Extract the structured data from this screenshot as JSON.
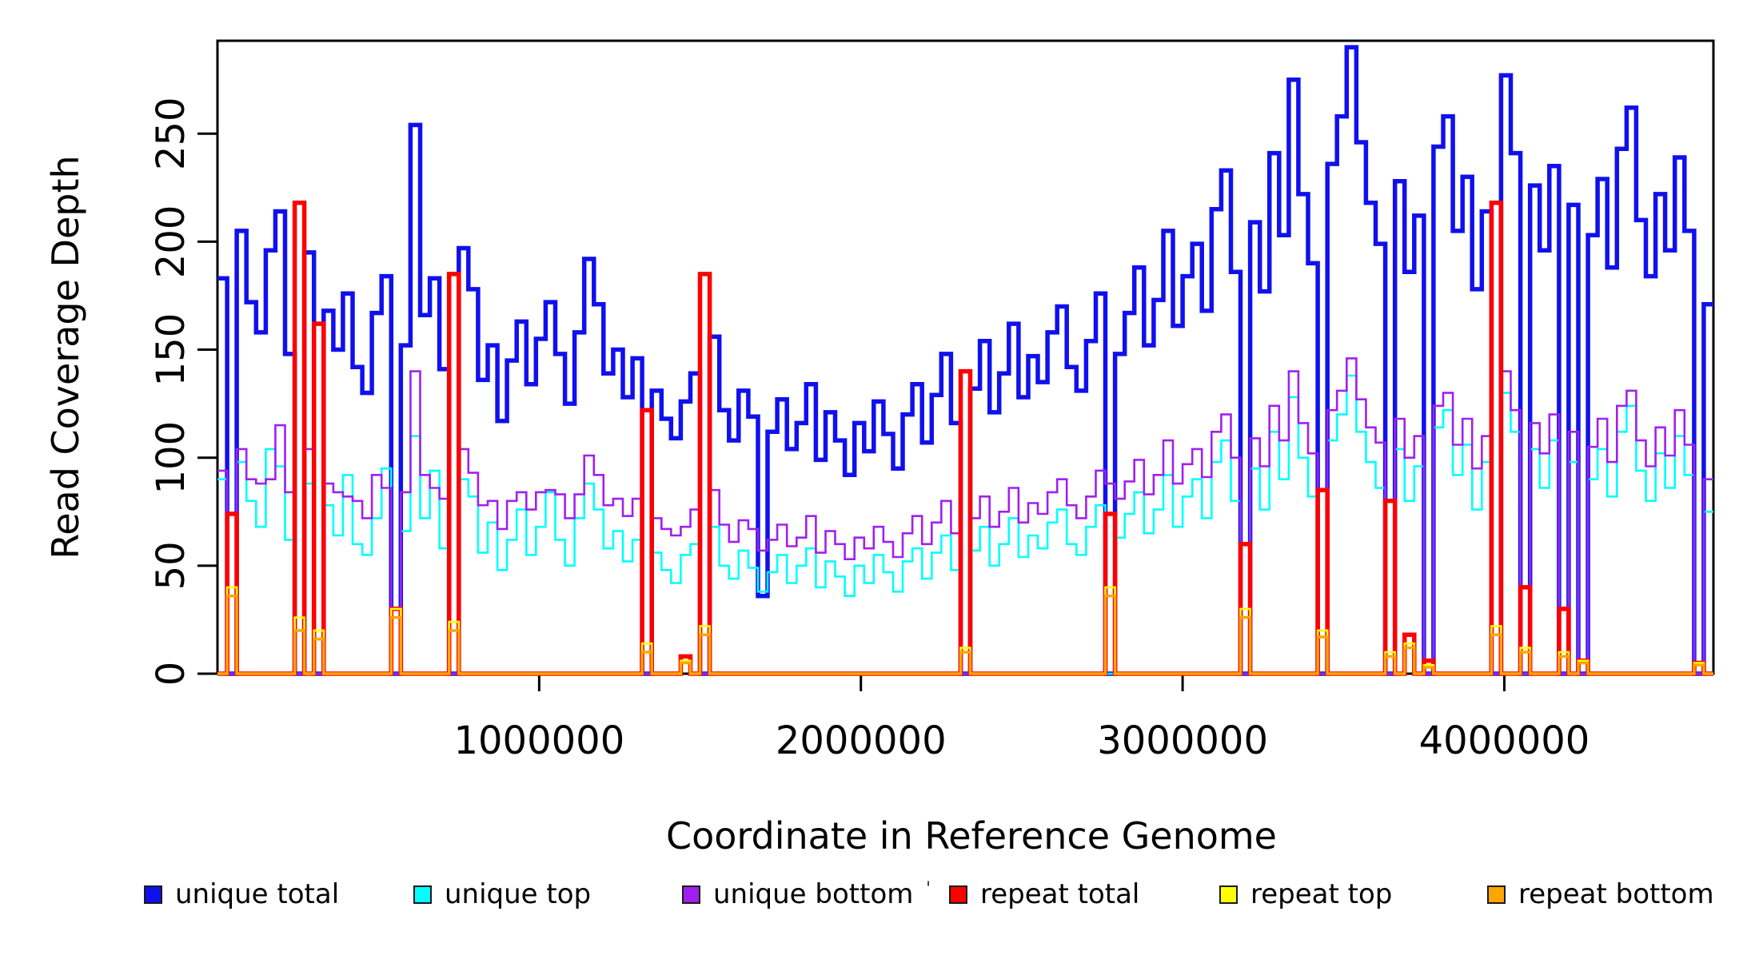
{
  "figure": {
    "background_color": "#ffffff",
    "plot_border_color": "#000000"
  },
  "chart_data": {
    "type": "line",
    "subtype": "step-coverage-histogram",
    "title": "",
    "xlabel": "Coordinate in Reference Genome",
    "ylabel": "Read Coverage Depth",
    "xlim": [
      0,
      4650000
    ],
    "ylim": [
      0,
      293
    ],
    "x_ticks": [
      1000000,
      2000000,
      3000000,
      4000000
    ],
    "y_ticks": [
      0,
      50,
      100,
      150,
      200,
      250
    ],
    "grid": false,
    "legend_position": "bottom",
    "bin_size_bp": 30000,
    "n_bins": 155,
    "stray_mark": "'",
    "series": [
      {
        "name": "unique total",
        "color": "#1010EE",
        "line_width": 5.5,
        "values": [
          183,
          0,
          205,
          172,
          158,
          196,
          214,
          148,
          0,
          195,
          0,
          168,
          150,
          176,
          142,
          130,
          167,
          184,
          0,
          152,
          254,
          166,
          183,
          141,
          0,
          197,
          178,
          136,
          152,
          117,
          145,
          163,
          134,
          155,
          172,
          148,
          125,
          158,
          192,
          171,
          139,
          150,
          128,
          146,
          0,
          131,
          118,
          109,
          126,
          139,
          0,
          156,
          122,
          108,
          131,
          119,
          36,
          112,
          127,
          104,
          116,
          134,
          99,
          121,
          108,
          92,
          116,
          103,
          126,
          111,
          95,
          120,
          134,
          107,
          129,
          148,
          116,
          0,
          132,
          154,
          121,
          139,
          162,
          128,
          147,
          135,
          158,
          170,
          142,
          131,
          154,
          176,
          0,
          148,
          167,
          188,
          152,
          173,
          205,
          161,
          184,
          199,
          168,
          215,
          233,
          186,
          0,
          209,
          177,
          241,
          203,
          275,
          222,
          190,
          0,
          236,
          258,
          290,
          246,
          218,
          199,
          0,
          228,
          186,
          212,
          0,
          244,
          258,
          205,
          230,
          178,
          214,
          0,
          277,
          241,
          0,
          226,
          196,
          235,
          0,
          217,
          0,
          203,
          229,
          188,
          243,
          262,
          210,
          184,
          222,
          196,
          239,
          205,
          0,
          171
        ]
      },
      {
        "name": "unique top",
        "color": "#00FFFF",
        "line_width": 2.6,
        "values": [
          90,
          0,
          98,
          80,
          68,
          104,
          96,
          62,
          0,
          88,
          0,
          78,
          64,
          92,
          60,
          55,
          72,
          95,
          0,
          66,
          110,
          72,
          94,
          58,
          0,
          90,
          82,
          56,
          70,
          48,
          62,
          76,
          55,
          68,
          84,
          62,
          50,
          72,
          88,
          76,
          58,
          66,
          52,
          62,
          0,
          56,
          48,
          42,
          55,
          60,
          0,
          68,
          50,
          44,
          57,
          49,
          38,
          47,
          55,
          42,
          50,
          58,
          40,
          52,
          45,
          36,
          50,
          42,
          55,
          47,
          38,
          52,
          58,
          44,
          56,
          64,
          48,
          0,
          57,
          68,
          50,
          60,
          72,
          54,
          64,
          58,
          70,
          76,
          60,
          55,
          68,
          78,
          0,
          63,
          74,
          84,
          65,
          76,
          92,
          68,
          82,
          90,
          72,
          98,
          108,
          80,
          0,
          95,
          76,
          112,
          90,
          128,
          100,
          82,
          0,
          108,
          120,
          138,
          112,
          98,
          86,
          0,
          104,
          80,
          96,
          0,
          114,
          122,
          92,
          106,
          76,
          98,
          0,
          130,
          112,
          0,
          104,
          86,
          108,
          0,
          98,
          0,
          90,
          104,
          82,
          112,
          124,
          94,
          80,
          102,
          86,
          110,
          92,
          0,
          75
        ]
      },
      {
        "name": "unique bottom",
        "color": "#A020F0",
        "line_width": 2.6,
        "values": [
          94,
          0,
          104,
          90,
          88,
          90,
          115,
          84,
          0,
          104,
          0,
          88,
          84,
          82,
          80,
          72,
          92,
          86,
          0,
          84,
          140,
          92,
          86,
          81,
          0,
          104,
          93,
          78,
          80,
          67,
          80,
          84,
          76,
          84,
          85,
          83,
          72,
          83,
          101,
          92,
          78,
          81,
          73,
          81,
          0,
          72,
          67,
          64,
          68,
          76,
          0,
          85,
          69,
          61,
          71,
          67,
          57,
          62,
          69,
          59,
          63,
          73,
          56,
          66,
          60,
          53,
          63,
          58,
          68,
          61,
          54,
          65,
          73,
          60,
          70,
          80,
          65,
          0,
          72,
          82,
          68,
          75,
          86,
          70,
          79,
          74,
          84,
          90,
          78,
          72,
          82,
          94,
          88,
          81,
          89,
          99,
          83,
          92,
          108,
          88,
          97,
          104,
          91,
          112,
          120,
          100,
          0,
          109,
          96,
          124,
          108,
          140,
          116,
          102,
          0,
          122,
          131,
          146,
          127,
          114,
          107,
          0,
          118,
          100,
          110,
          0,
          124,
          130,
          106,
          118,
          95,
          110,
          0,
          140,
          122,
          0,
          116,
          102,
          120,
          0,
          112,
          0,
          105,
          118,
          98,
          124,
          131,
          108,
          96,
          114,
          101,
          122,
          106,
          0,
          90
        ]
      },
      {
        "name": "repeat total",
        "color": "#FF0000",
        "line_width": 5.5,
        "values_sparse": {
          "1": 74,
          "8": 218,
          "10": 162,
          "18": 30,
          "24": 185,
          "44": 122,
          "48": 8,
          "50": 185,
          "77": 140,
          "92": 74,
          "106": 60,
          "114": 85,
          "121": 80,
          "123": 18,
          "125": 6,
          "132": 218,
          "135": 40,
          "139": 30,
          "141": 6,
          "153": 5
        }
      },
      {
        "name": "repeat top",
        "color": "#FFFF00",
        "line_width": 2.6,
        "values_sparse": {
          "1": 40,
          "8": 26,
          "10": 20,
          "18": 30,
          "24": 24,
          "44": 14,
          "48": 6,
          "50": 22,
          "77": 12,
          "92": 40,
          "106": 30,
          "114": 20,
          "121": 10,
          "123": 14,
          "125": 4,
          "132": 22,
          "135": 12,
          "139": 10,
          "141": 6,
          "153": 5
        }
      },
      {
        "name": "repeat bottom",
        "color": "#FFA500",
        "line_width": 3.4,
        "values_sparse": {
          "1": 36,
          "8": 20,
          "10": 16,
          "18": 26,
          "24": 20,
          "44": 10,
          "48": 5,
          "50": 18,
          "77": 10,
          "92": 36,
          "106": 26,
          "114": 17,
          "121": 8,
          "123": 12,
          "125": 3,
          "132": 18,
          "135": 10,
          "139": 8,
          "141": 5,
          "153": 4
        }
      }
    ]
  }
}
